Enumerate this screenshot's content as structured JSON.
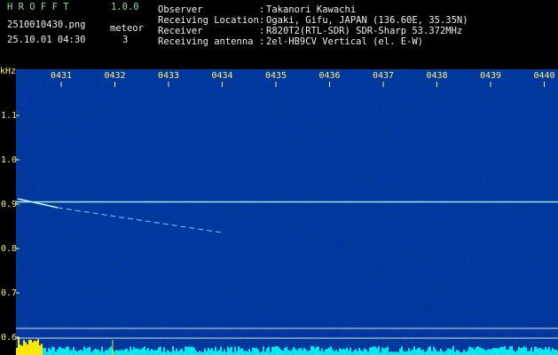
{
  "header": {
    "app_name": "H R O F F T",
    "version": "1.0.0",
    "file": "2510010430.png",
    "timestamp": "25.10.01 04:30",
    "count_label": "meteor",
    "count": "3"
  },
  "station": {
    "rows": [
      {
        "label": "Observer",
        "value": "Takanori Kawachi"
      },
      {
        "label": "Receiving Location",
        "value": "Ogaki, Gifu, JAPAN (136.60E, 35.35N)"
      },
      {
        "label": "Receiver",
        "value": "R820T2(RTL-SDR) SDR-Sharp 53.372MHz"
      },
      {
        "label": "Receiving antenna",
        "value": "2el-HB9CV Vertical (el. E-W)"
      }
    ],
    "separator": ":"
  },
  "plot": {
    "unit": "kHz",
    "time_labels": [
      "0431",
      "0432",
      "0433",
      "0434",
      "0435",
      "0436",
      "0437",
      "0438",
      "0439",
      "0440"
    ],
    "freq_labels": [
      "1.1",
      "1.0",
      "0.9",
      "0.8",
      "0.7",
      "0.6"
    ]
  }
}
